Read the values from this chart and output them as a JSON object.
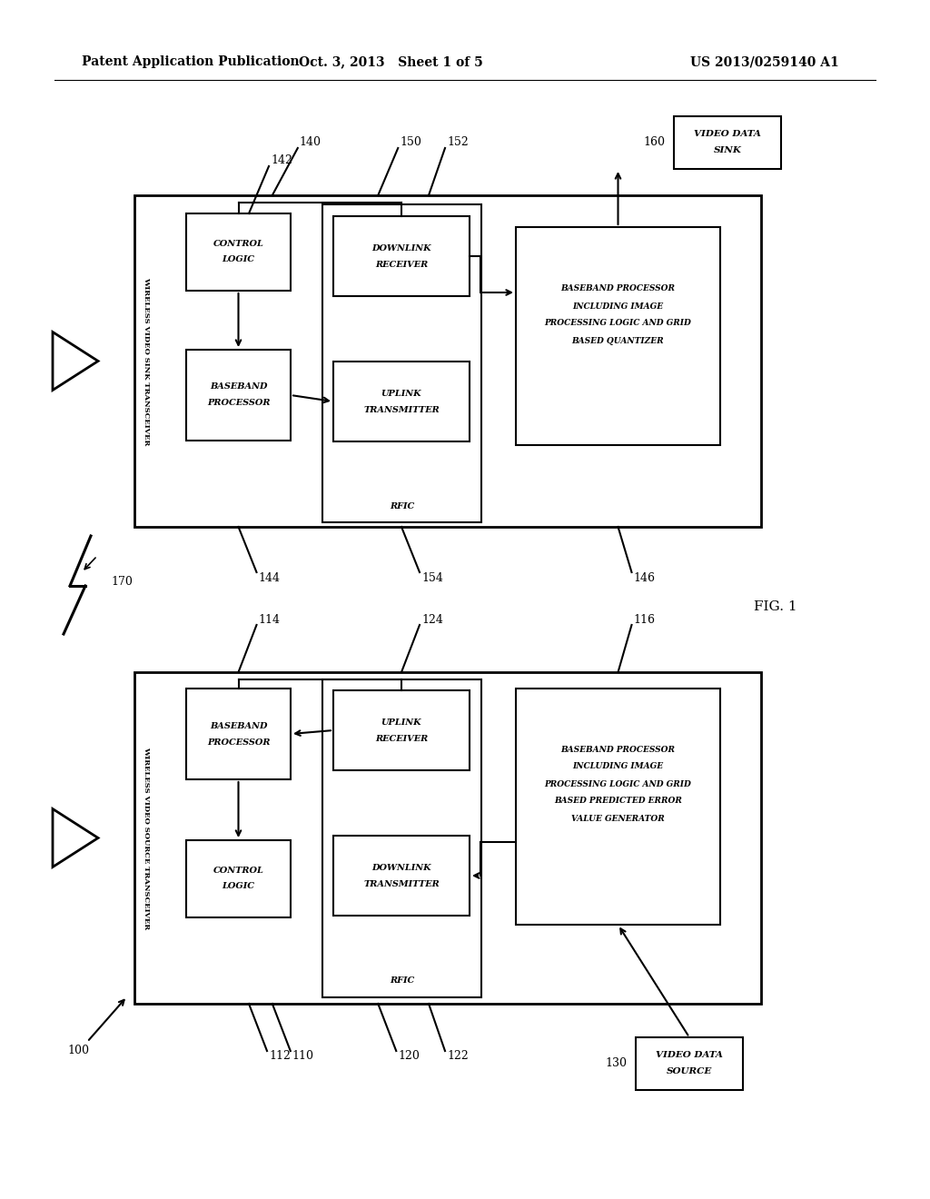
{
  "bg_color": "#ffffff",
  "header_left": "Patent Application Publication",
  "header_center": "Oct. 3, 2013   Sheet 1 of 5",
  "header_right": "US 2013/0259140 A1",
  "fig_label": "FIG. 1",
  "labels": {
    "100": "100",
    "110": "110",
    "112": "112",
    "114": "114",
    "116": "116",
    "120": "120",
    "122": "122",
    "124": "124",
    "130": "130",
    "140": "140",
    "142": "142",
    "144": "144",
    "146": "146",
    "150": "150",
    "152": "152",
    "154": "154",
    "160": "160",
    "170": "170"
  }
}
